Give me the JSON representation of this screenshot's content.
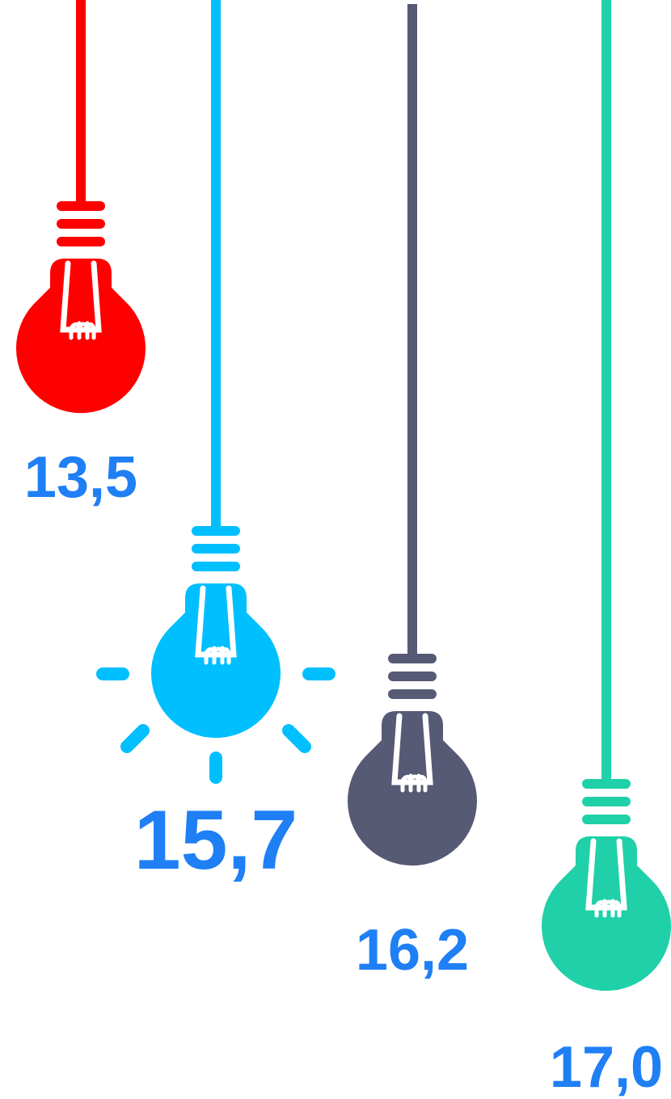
{
  "bulbs": [
    {
      "label": "13,5",
      "color": "#ff0000"
    },
    {
      "label": "15,7",
      "color": "#00bfff"
    },
    {
      "label": "16,2",
      "color": "#575a75"
    },
    {
      "label": "17,0",
      "color": "#20d0a8"
    }
  ]
}
